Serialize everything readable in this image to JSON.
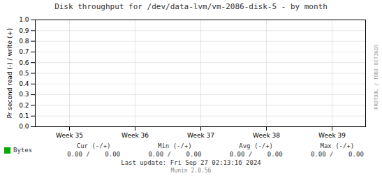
{
  "chart_data": {
    "type": "line",
    "title": "Disk throughput for /dev/data-lvm/vm-2086-disk-5 - by month",
    "ylabel": "Pr second read (-) / write (+)",
    "categories": [
      "Week 35",
      "Week 36",
      "Week 37",
      "Week 38",
      "Week 39"
    ],
    "series": [
      {
        "name": "Bytes",
        "color": "#00aa00",
        "values": [
          null,
          null,
          null,
          null,
          null
        ]
      }
    ],
    "ylim": [
      0.0,
      1.0
    ],
    "yticks": [
      {
        "value": 0.0,
        "label": "0.0"
      },
      0.1,
      0.2,
      0.3,
      0.4,
      0.5,
      0.6,
      0.7,
      0.8,
      0.9,
      {
        "value": 1.0,
        "label": "1.0"
      }
    ],
    "grid": true,
    "legend": "bottom left",
    "annotations": [
      "Cur (-/+)",
      "Min (-/+)",
      "Avg (-/+)",
      "Max (-/+)",
      "0.00 /    0.00",
      "0.00 /    0.00",
      "0.00 /    0.00",
      "0.00 /    0.00",
      "Last update: Fri Sep 27 02:13:16 2024",
      "RRDTOOL / TOBI OETIKER",
      "Munin 2.0.56"
    ]
  }
}
